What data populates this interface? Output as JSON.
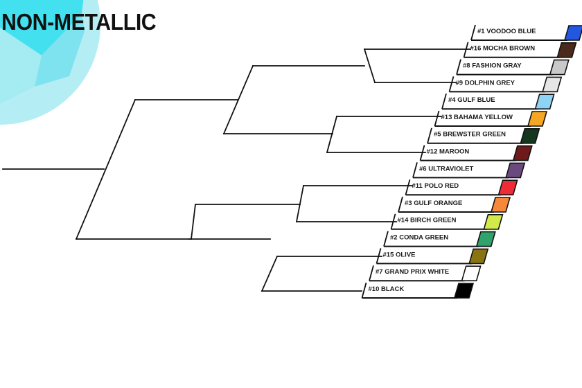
{
  "title": "NON-METALLIC",
  "colors": {
    "line": "#111111",
    "decor_light": "#b4eef4",
    "decor_mid": "#7ee3ee",
    "decor_bright": "#43e1ef"
  },
  "entries": [
    {
      "seed": 1,
      "name": "#1 VOODOO BLUE",
      "color": "#2357e0"
    },
    {
      "seed": 16,
      "name": "#16 MOCHA BROWN",
      "color": "#4a2a1c"
    },
    {
      "seed": 8,
      "name": "#8 FASHION GRAY",
      "color": "#c9c9c9"
    },
    {
      "seed": 9,
      "name": "#9 DOLPHIN GREY",
      "color": "#e6e6e6"
    },
    {
      "seed": 4,
      "name": "#4 GULF BLUE",
      "color": "#8fd3f4"
    },
    {
      "seed": 13,
      "name": "#13 BAHAMA YELLOW",
      "color": "#f5a623"
    },
    {
      "seed": 5,
      "name": "#5 BREWSTER GREEN",
      "color": "#15361f"
    },
    {
      "seed": 12,
      "name": "#12 MAROON",
      "color": "#6e1a1a"
    },
    {
      "seed": 6,
      "name": "#6 ULTRAVIOLET",
      "color": "#6a4a7e"
    },
    {
      "seed": 11,
      "name": "#11 POLO RED",
      "color": "#ef2b36"
    },
    {
      "seed": 3,
      "name": "#3 GULF ORANGE",
      "color": "#f5883a"
    },
    {
      "seed": 14,
      "name": "#14 BIRCH GREEN",
      "color": "#d3ea4b"
    },
    {
      "seed": 2,
      "name": "#2 CONDA GREEN",
      "color": "#2fa36b"
    },
    {
      "seed": 15,
      "name": "#15 OLIVE",
      "color": "#8a7412"
    },
    {
      "seed": 7,
      "name": "#7 GRAND PRIX WHITE",
      "color": "#ffffff"
    },
    {
      "seed": 10,
      "name": "#10 BLACK",
      "color": "#000000"
    }
  ]
}
